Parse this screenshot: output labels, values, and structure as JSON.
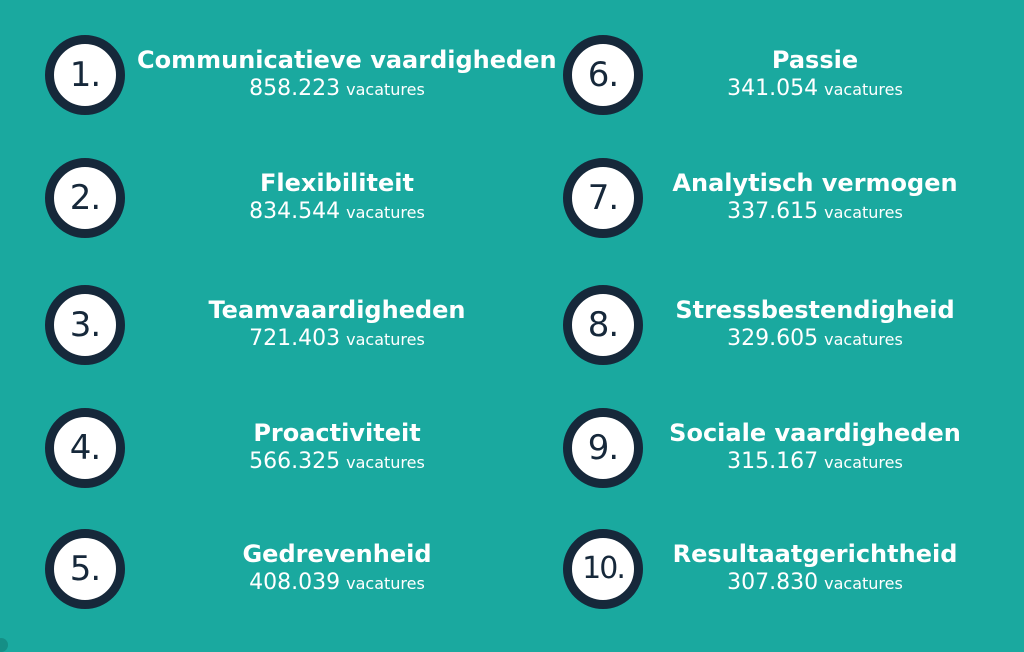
{
  "items": [
    {
      "rank": "1.",
      "skill": "Communicatieve vaardigheden",
      "count": "858.223",
      "unit": "vacatures"
    },
    {
      "rank": "2.",
      "skill": "Flexibiliteit",
      "count": "834.544",
      "unit": "vacatures"
    },
    {
      "rank": "3.",
      "skill": "Teamvaardigheden",
      "count": "721.403",
      "unit": "vacatures"
    },
    {
      "rank": "4.",
      "skill": "Proactiviteit",
      "count": "566.325",
      "unit": "vacatures"
    },
    {
      "rank": "5.",
      "skill": "Gedrevenheid",
      "count": "408.039",
      "unit": "vacatures"
    },
    {
      "rank": "6.",
      "skill": "Passie",
      "count": "341.054",
      "unit": "vacatures"
    },
    {
      "rank": "7.",
      "skill": "Analytisch vermogen",
      "count": "337.615",
      "unit": "vacatures"
    },
    {
      "rank": "8.",
      "skill": "Stressbestendigheid",
      "count": "329.605",
      "unit": "vacatures"
    },
    {
      "rank": "9.",
      "skill": "Sociale vaardigheden",
      "count": "315.167",
      "unit": "vacatures"
    },
    {
      "rank": "10.",
      "skill": "Resultaatgerichtheid",
      "count": "307.830",
      "unit": "vacatures"
    }
  ],
  "colors": {
    "background": "#1aa99f",
    "badge_ring": "#16283a",
    "badge_fill": "#ffffff",
    "text": "#ffffff"
  }
}
